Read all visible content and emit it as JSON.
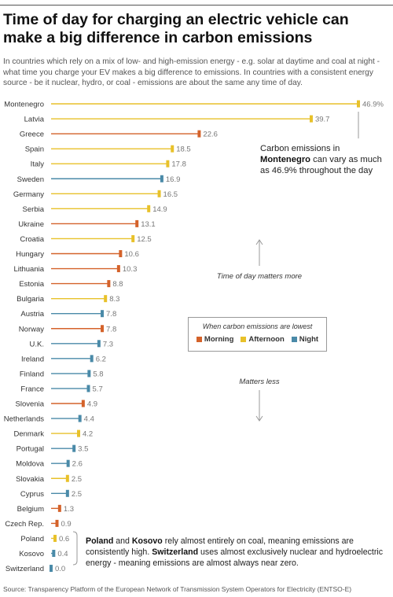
{
  "header": {
    "title": "Time of day for charging an electric vehicle can make a big difference in carbon emissions",
    "subtitle": "In countries which rely on a mix of low- and high-emission energy - e.g. solar at daytime and coal at night - what time you charge your EV makes a big difference to emissions. In countries with a consistent energy source - be it nuclear, hydro, or coal - emissions are about the same any time of day."
  },
  "legend": {
    "title": "When carbon emissions are lowest",
    "items": [
      {
        "label": "Morning",
        "color": "#d4622a"
      },
      {
        "label": "Afternoon",
        "color": "#e8c12a"
      },
      {
        "label": "Night",
        "color": "#4a8aa8"
      }
    ]
  },
  "arrows": {
    "more_label": "Time of day matters more",
    "less_label": "Matters less"
  },
  "annotations": {
    "montenegro_pre": "Carbon emissions in ",
    "montenegro_country": "Montenegro",
    "montenegro_post": " can vary as much as 46.9% throughout the day",
    "pk_country1": "Poland",
    "pk_and": " and ",
    "pk_country2": "Kosovo",
    "pk_text1": " rely almost entirely on coal, meaning emissions are consistently high. ",
    "pk_country3": "Switzerland",
    "pk_text2": " uses almost exclusively nuclear and hydroelectric energy - meaning emissions are almost always near zero."
  },
  "source": "Source: Transparency Platform of the European Network of Transmission System Operators for Electricity (ENTSO-E)",
  "chart_data": {
    "type": "bar",
    "title": "Time of day for charging an electric vehicle can make a big difference in carbon emissions",
    "xlim": [
      0,
      46.9
    ],
    "value_suffix": "%",
    "colors": {
      "Morning": "#d4622a",
      "Afternoon": "#e8c12a",
      "Night": "#4a8aa8"
    },
    "categories": [
      "Montenegro",
      "Latvia",
      "Greece",
      "Spain",
      "Italy",
      "Sweden",
      "Germany",
      "Serbia",
      "Ukraine",
      "Croatia",
      "Hungary",
      "Lithuania",
      "Estonia",
      "Bulgaria",
      "Austria",
      "Norway",
      "U.K.",
      "Ireland",
      "Finland",
      "France",
      "Slovenia",
      "Netherlands",
      "Denmark",
      "Portugal",
      "Moldova",
      "Slovakia",
      "Cyprus",
      "Belgium",
      "Czech Rep.",
      "Poland",
      "Kosovo",
      "Switzerland"
    ],
    "values": [
      46.9,
      39.7,
      22.6,
      18.5,
      17.8,
      16.9,
      16.5,
      14.9,
      13.1,
      12.5,
      10.6,
      10.3,
      8.8,
      8.3,
      7.8,
      7.8,
      7.3,
      6.2,
      5.8,
      5.7,
      4.9,
      4.4,
      4.2,
      3.5,
      2.6,
      2.5,
      2.5,
      1.3,
      0.9,
      0.6,
      0.4,
      0.0
    ],
    "lowest_time": [
      "Afternoon",
      "Afternoon",
      "Morning",
      "Afternoon",
      "Afternoon",
      "Night",
      "Afternoon",
      "Afternoon",
      "Morning",
      "Afternoon",
      "Morning",
      "Morning",
      "Morning",
      "Afternoon",
      "Night",
      "Morning",
      "Night",
      "Night",
      "Night",
      "Night",
      "Morning",
      "Night",
      "Afternoon",
      "Night",
      "Night",
      "Afternoon",
      "Night",
      "Morning",
      "Morning",
      "Afternoon",
      "Night",
      "Night"
    ]
  }
}
